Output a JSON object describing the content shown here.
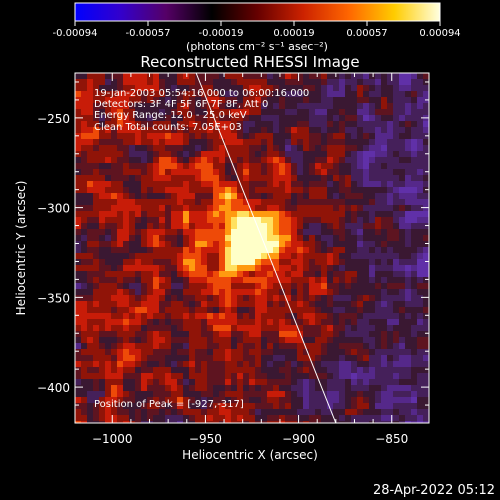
{
  "colorbar": {
    "tick_labels": [
      "-0.00094",
      "-0.00057",
      "-0.00019",
      "0.00019",
      "0.00057",
      "0.00094"
    ],
    "unit_label": "(photons cm⁻² s⁻¹ asec⁻²)",
    "range": [
      -0.00094,
      0.00094
    ],
    "gradient": [
      "#0000ff",
      "#3300cc",
      "#550066",
      "#000000",
      "#660000",
      "#cc2200",
      "#ff6600",
      "#ffcc00",
      "#ffffe0"
    ]
  },
  "chart_data": {
    "type": "heatmap",
    "title": "Reconstructed RHESSI Image",
    "xlabel": "Heliocentric X (arcsec)",
    "ylabel": "Heliocentric Y (arcsec)",
    "xlim": [
      -1020,
      -830
    ],
    "ylim": [
      -420,
      -225
    ],
    "xticks": [
      -1000,
      -950,
      -900,
      -850
    ],
    "yticks": [
      -250,
      -300,
      -350,
      -400
    ],
    "xtick_labels": [
      "−1000",
      "−950",
      "−900",
      "−850"
    ],
    "ytick_labels": [
      "−250",
      "−300",
      "−350",
      "−400"
    ],
    "annotations": [
      "19-Jan-2003 05:54:16.000 to 06:00:16.000",
      "Detectors: 3F 4F 5F 6F 7F 8F, Att 0",
      "Energy Range: 12.0 - 25.0 keV",
      "Clean    Total counts: 7.05E+03"
    ],
    "peak": {
      "label": "Position of Peak = [-927,-317]",
      "x": -927,
      "y": -317
    },
    "limb_line": {
      "x": [
        -955,
        -880
      ],
      "y": [
        -225,
        -420
      ]
    },
    "colors": {
      "background_dark": "#3a1832",
      "negative": "#5a2a8a",
      "positive_low": "#7a1a10",
      "positive_mid": "#cc2200",
      "peak": "#ffffc0"
    }
  },
  "footer": {
    "timestamp": "28-Apr-2022 05:12"
  }
}
